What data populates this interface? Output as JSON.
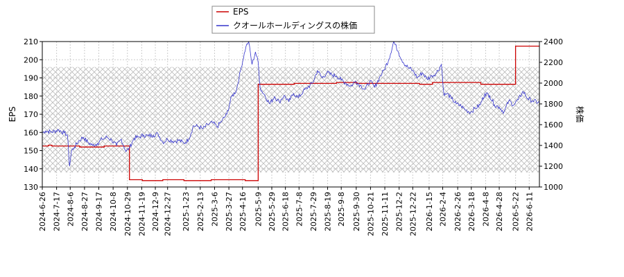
{
  "chart_data": {
    "type": "line",
    "title": "",
    "legend": {
      "placement": "top-center",
      "entries": [
        {
          "label": "EPS",
          "color": "#cc0000"
        },
        {
          "label": "クオールホールディングスの株価",
          "color": "#3333cc"
        }
      ]
    },
    "xlabel": "",
    "ylabel_left": "EPS",
    "ylabel_right": "株価",
    "ylim_left": [
      130,
      210
    ],
    "ylim_right": [
      1000,
      2400
    ],
    "yticks_left": [
      130,
      140,
      150,
      160,
      170,
      180,
      190,
      200,
      210
    ],
    "yticks_right": [
      1000,
      1200,
      1400,
      1600,
      1800,
      2000,
      2200,
      2400
    ],
    "xlim": [
      "2024-06-26",
      "2026-06-26"
    ],
    "xticks": [
      "2024-6-26",
      "2024-7-17",
      "2024-8-6",
      "2024-8-27",
      "2024-9-17",
      "2024-10-8",
      "2024-10-29",
      "2024-11-19",
      "2024-12-9",
      "2024-12-27",
      "2025-1-23",
      "2025-2-13",
      "2025-3-6",
      "2025-3-27",
      "2025-4-16",
      "2025-5-9",
      "2025-5-29",
      "2025-6-18",
      "2025-7-8",
      "2025-7-29",
      "2025-8-19",
      "2025-9-8",
      "2025-9-30",
      "2025-10-21",
      "2025-11-11",
      "2025-12-2",
      "2025-12-22",
      "2026-1-15",
      "2026-2-4",
      "2026-2-26",
      "2026-3-18",
      "2026-4-8",
      "2026-4-28",
      "2026-5-22",
      "2026-6-11"
    ],
    "grid": true,
    "hatched_band_left": [
      138,
      196
    ],
    "series": [
      {
        "name": "EPS",
        "axis": "left",
        "color": "#cc0000",
        "x": [
          "2024-06-26",
          "2024-07-05",
          "2024-07-10",
          "2024-08-20",
          "2024-09-25",
          "2024-10-15",
          "2024-10-31",
          "2024-11-01",
          "2024-11-20",
          "2024-12-20",
          "2025-01-20",
          "2025-03-01",
          "2025-04-20",
          "2025-05-05",
          "2025-05-08",
          "2025-05-09",
          "2025-06-01",
          "2025-07-01",
          "2025-08-01",
          "2025-09-01",
          "2025-10-01",
          "2025-11-01",
          "2025-12-01",
          "2026-01-01",
          "2026-01-20",
          "2026-02-10",
          "2026-03-01",
          "2026-04-01",
          "2026-05-01",
          "2026-05-21",
          "2026-05-22",
          "2026-06-01",
          "2026-06-26"
        ],
        "values": [
          152.5,
          153,
          152.5,
          152,
          152.5,
          152.5,
          152.5,
          134,
          133.5,
          134,
          133.5,
          134,
          133.5,
          133.5,
          133.5,
          186.5,
          186.5,
          187,
          187,
          187.5,
          187,
          187,
          187,
          186.5,
          187.5,
          187.5,
          187.5,
          186.5,
          186.5,
          186.5,
          207.5,
          207.5,
          207.5
        ]
      },
      {
        "name": "クオールホールディングスの株価",
        "axis": "right",
        "color": "#3333cc",
        "x": [
          "2024-06-26",
          "2024-07-01",
          "2024-07-10",
          "2024-07-20",
          "2024-07-28",
          "2024-08-02",
          "2024-08-05",
          "2024-08-08",
          "2024-08-12",
          "2024-08-18",
          "2024-08-25",
          "2024-09-01",
          "2024-09-08",
          "2024-09-15",
          "2024-09-22",
          "2024-09-29",
          "2024-10-06",
          "2024-10-13",
          "2024-10-20",
          "2024-10-27",
          "2024-11-01",
          "2024-11-08",
          "2024-11-15",
          "2024-11-22",
          "2024-11-29",
          "2024-12-06",
          "2024-12-13",
          "2024-12-20",
          "2024-12-27",
          "2025-01-06",
          "2025-01-13",
          "2025-01-20",
          "2025-01-27",
          "2025-02-03",
          "2025-02-10",
          "2025-02-17",
          "2025-02-24",
          "2025-03-03",
          "2025-03-10",
          "2025-03-17",
          "2025-03-24",
          "2025-03-31",
          "2025-04-07",
          "2025-04-14",
          "2025-04-21",
          "2025-04-25",
          "2025-04-30",
          "2025-05-05",
          "2025-05-09",
          "2025-05-12",
          "2025-05-19",
          "2025-05-26",
          "2025-06-02",
          "2025-06-09",
          "2025-06-16",
          "2025-06-23",
          "2025-06-30",
          "2025-07-07",
          "2025-07-14",
          "2025-07-21",
          "2025-07-28",
          "2025-08-04",
          "2025-08-11",
          "2025-08-18",
          "2025-08-25",
          "2025-09-01",
          "2025-09-08",
          "2025-09-15",
          "2025-09-22",
          "2025-09-29",
          "2025-10-06",
          "2025-10-13",
          "2025-10-20",
          "2025-10-27",
          "2025-11-03",
          "2025-11-10",
          "2025-11-17",
          "2025-11-24",
          "2025-12-01",
          "2025-12-08",
          "2025-12-15",
          "2025-12-22",
          "2025-12-29",
          "2026-01-05",
          "2026-01-12",
          "2026-01-19",
          "2026-01-26",
          "2026-02-02",
          "2026-02-06",
          "2026-02-10",
          "2026-02-17",
          "2026-02-24",
          "2026-03-03",
          "2026-03-10",
          "2026-03-17",
          "2026-03-24",
          "2026-03-31",
          "2026-04-07",
          "2026-04-14",
          "2026-04-21",
          "2026-04-28",
          "2026-05-05",
          "2026-05-12",
          "2026-05-19",
          "2026-05-26",
          "2026-06-02",
          "2026-06-09",
          "2026-06-16",
          "2026-06-26"
        ],
        "values": [
          1520,
          1540,
          1530,
          1550,
          1520,
          1500,
          1200,
          1350,
          1380,
          1440,
          1480,
          1430,
          1400,
          1420,
          1460,
          1480,
          1450,
          1400,
          1460,
          1340,
          1380,
          1470,
          1480,
          1500,
          1490,
          1500,
          1510,
          1430,
          1460,
          1440,
          1450,
          1420,
          1460,
          1590,
          1580,
          1560,
          1600,
          1620,
          1580,
          1640,
          1700,
          1870,
          1930,
          2150,
          2350,
          2400,
          2180,
          2300,
          2200,
          1950,
          1880,
          1800,
          1870,
          1820,
          1880,
          1820,
          1900,
          1860,
          1920,
          1960,
          2000,
          2120,
          2050,
          2100,
          2080,
          2070,
          2030,
          2000,
          1970,
          2020,
          1980,
          1940,
          2020,
          1960,
          2050,
          2130,
          2230,
          2400,
          2300,
          2200,
          2150,
          2120,
          2050,
          2100,
          2040,
          2070,
          2100,
          2180,
          1880,
          1900,
          1850,
          1800,
          1780,
          1740,
          1720,
          1760,
          1790,
          1900,
          1880,
          1790,
          1770,
          1720,
          1830,
          1790,
          1840,
          1920,
          1850,
          1830,
          1810
        ]
      }
    ]
  }
}
